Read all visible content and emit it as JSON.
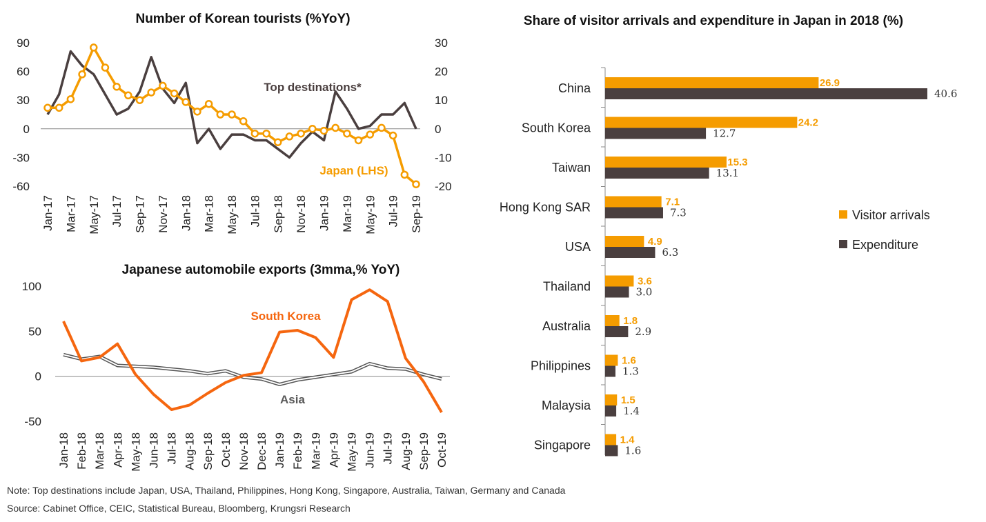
{
  "colors": {
    "orange": "#f59c00",
    "brown": "#4a3f3f",
    "darkOrange": "#f5660f",
    "grey": "#595959"
  },
  "chart_data": [
    {
      "id": "korean-tourists",
      "type": "line",
      "title": "Number of Korean tourists (%YoY)",
      "categories": [
        "Jan-17",
        "Feb-17",
        "Mar-17",
        "Apr-17",
        "May-17",
        "Jun-17",
        "Jul-17",
        "Aug-17",
        "Sep-17",
        "Oct-17",
        "Nov-17",
        "Dec-17",
        "Jan-18",
        "Feb-18",
        "Mar-18",
        "Apr-18",
        "May-18",
        "Jun-18",
        "Jul-18",
        "Aug-18",
        "Sep-18",
        "Oct-18",
        "Nov-18",
        "Dec-18",
        "Jan-19",
        "Feb-19",
        "Mar-19",
        "Apr-19",
        "May-19",
        "Jun-19",
        "Jul-19",
        "Aug-19",
        "Sep-19"
      ],
      "tick_labels": [
        "Jan-17",
        "Mar-17",
        "May-17",
        "Jul-17",
        "Sep-17",
        "Nov-17",
        "Jan-18",
        "Mar-18",
        "May-18",
        "Jul-18",
        "Sep-18",
        "Nov-18",
        "Jan-19",
        "Mar-19",
        "May-19",
        "Jul-19",
        "Sep-19"
      ],
      "ylim_left": [
        -60,
        90
      ],
      "yticks_left": [
        "90",
        "60",
        "30",
        "0",
        "-30",
        "-60"
      ],
      "ylim_right": [
        -20,
        30
      ],
      "yticks_right": [
        "30",
        "20",
        "10",
        "0",
        "-10",
        "-20"
      ],
      "series": [
        {
          "name": "Japan (LHS)",
          "axis": "left",
          "marker": "circle",
          "values": [
            22,
            22,
            31,
            57,
            85,
            64,
            44,
            35,
            30,
            38,
            45,
            37,
            28,
            18,
            26,
            15,
            15,
            8,
            -5,
            -5,
            -14,
            -8,
            -5,
            0,
            -2,
            1,
            -5,
            -12,
            -6,
            1,
            -7,
            -48,
            -58
          ]
        },
        {
          "name": "Top destinations*",
          "axis": "right",
          "marker": "none",
          "values": [
            5,
            12,
            27,
            22,
            19,
            12,
            5,
            7,
            13,
            25,
            14,
            9,
            16,
            -5,
            0,
            -7,
            -2,
            -2,
            -4,
            -4,
            -7,
            -10,
            -5,
            -1,
            -4,
            13,
            7,
            0,
            1,
            5,
            5,
            9,
            0
          ]
        }
      ]
    },
    {
      "id": "auto-exports",
      "type": "line",
      "title": "Japanese automobile exports (3mma,% YoY)",
      "categories": [
        "Jan-18",
        "Feb-18",
        "Mar-18",
        "Apr-18",
        "May-18",
        "Jun-18",
        "Jul-18",
        "Aug-18",
        "Sep-18",
        "Oct-18",
        "Nov-18",
        "Dec-18",
        "Jan-19",
        "Feb-19",
        "Mar-19",
        "Apr-19",
        "May-19",
        "Jun-19",
        "Jul-19",
        "Aug-19",
        "Sep-19",
        "Oct-19"
      ],
      "ylim": [
        -50,
        100
      ],
      "yticks": [
        "100",
        "50",
        "0",
        "-50"
      ],
      "series": [
        {
          "name": "South Korea",
          "values": [
            61,
            17,
            21,
            36,
            2,
            -20,
            -37,
            -32,
            -19,
            -7,
            1,
            4,
            49,
            51,
            43,
            21,
            85,
            96,
            83,
            20,
            -6,
            -40
          ]
        },
        {
          "name": "Asia",
          "values": [
            24,
            19,
            22,
            12,
            11,
            10,
            8,
            6,
            3,
            6,
            -1,
            -3,
            -9,
            -4,
            -1,
            2,
            5,
            14,
            9,
            8,
            2,
            -3
          ]
        }
      ]
    },
    {
      "id": "visitor-share",
      "type": "bar",
      "orientation": "horizontal",
      "title": "Share of visitor arrivals and expenditure in Japan in 2018 (%)",
      "categories": [
        "China",
        "South Korea",
        "Taiwan",
        "Hong Kong SAR",
        "USA",
        "Thailand",
        "Australia",
        "Philippines",
        "Malaysia",
        "Singapore"
      ],
      "xlim": [
        0,
        45
      ],
      "series": [
        {
          "name": "Visitor arrivals",
          "values": [
            26.9,
            24.2,
            15.3,
            7.1,
            4.9,
            3.6,
            1.8,
            1.6,
            1.5,
            1.4
          ],
          "labels": [
            "26.9",
            "24.2",
            "15.3",
            "7.1",
            "4.9",
            "3.6",
            "1.8",
            "1.6",
            "1.5",
            "1.4"
          ]
        },
        {
          "name": "Expenditure",
          "values": [
            40.6,
            12.7,
            13.1,
            7.3,
            6.3,
            3.0,
            2.9,
            1.3,
            1.4,
            1.6
          ],
          "labels": [
            "40.6",
            "12.7",
            "13.1",
            "7.3",
            "6.3",
            "3.0",
            "2.9",
            "1.3",
            "1.4",
            "1.6"
          ]
        }
      ],
      "legend": "right"
    }
  ],
  "footer": {
    "note": "Note: Top destinations include Japan, USA, Thailand, Philippines, Hong Kong, Singapore, Australia, Taiwan, Germany and Canada",
    "source": "Source: Cabinet Office, CEIC, Statistical Bureau, Bloomberg, Krungsri Research"
  }
}
